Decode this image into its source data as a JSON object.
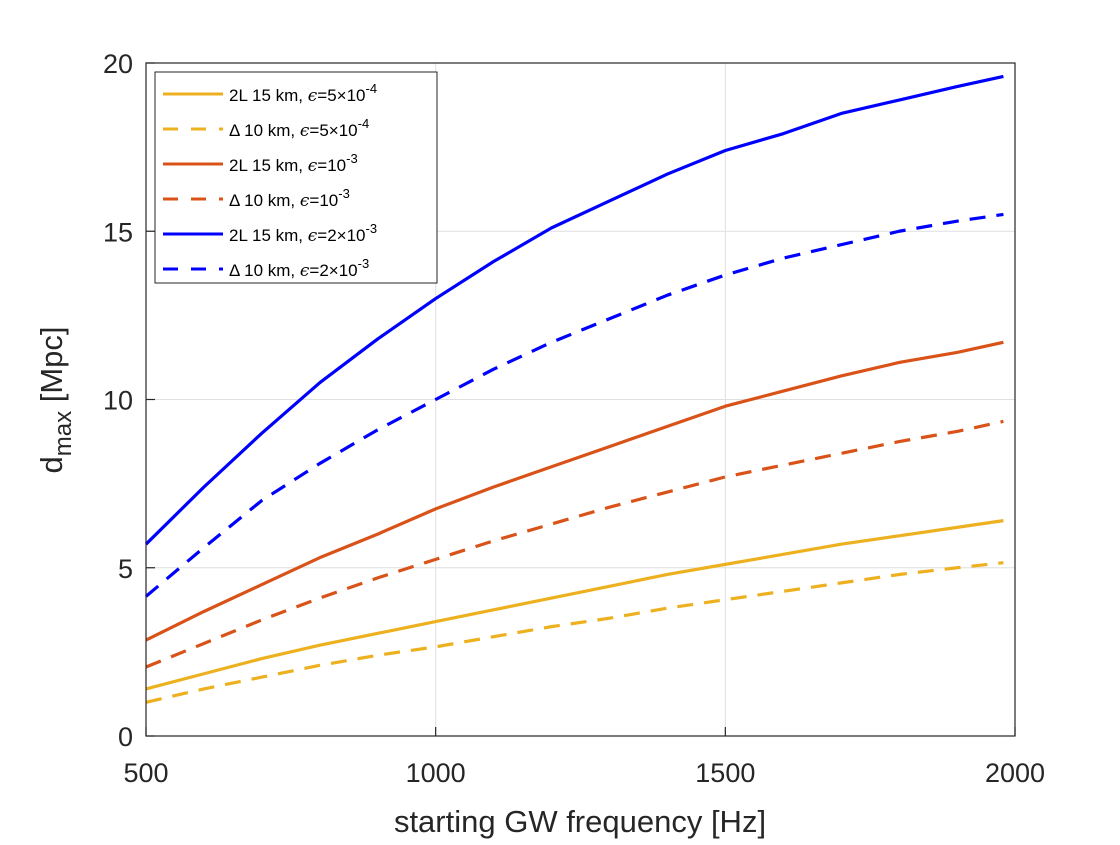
{
  "chart_data": {
    "type": "line",
    "xlabel": "starting GW frequency [Hz]",
    "ylabel": {
      "base": "d",
      "subscript": "max",
      "unit": " [Mpc]"
    },
    "xlim": [
      500,
      2000
    ],
    "ylim": [
      0,
      20
    ],
    "xticks": [
      500,
      1000,
      1500,
      2000
    ],
    "yticks": [
      0,
      5,
      10,
      15,
      20
    ],
    "grid": true,
    "legend_position": "top-left",
    "x": [
      500,
      600,
      700,
      800,
      900,
      1000,
      1100,
      1200,
      1300,
      1400,
      1500,
      1600,
      1700,
      1800,
      1900,
      1980
    ],
    "series": [
      {
        "label": {
          "prefix": "2L 15 km, ",
          "eps": "ϵ",
          "value": "=5×10",
          "exponent": "-4"
        },
        "color": "#EDB120",
        "style": "solid",
        "values": [
          1.4,
          1.85,
          2.3,
          2.7,
          3.05,
          3.4,
          3.75,
          4.1,
          4.45,
          4.8,
          5.1,
          5.4,
          5.7,
          5.95,
          6.2,
          6.4
        ]
      },
      {
        "label": {
          "prefix": "Δ 10 km, ",
          "eps": "ϵ",
          "value": "=5×10",
          "exponent": "-4"
        },
        "color": "#EDB120",
        "style": "dashed",
        "values": [
          1.0,
          1.4,
          1.75,
          2.1,
          2.4,
          2.65,
          2.95,
          3.25,
          3.5,
          3.8,
          4.05,
          4.3,
          4.55,
          4.8,
          5.0,
          5.15
        ]
      },
      {
        "label": {
          "prefix": "2L 15 km, ",
          "eps": "ϵ",
          "value": "=10",
          "exponent": "-3"
        },
        "color": "#D95319",
        "style": "solid",
        "values": [
          2.85,
          3.7,
          4.5,
          5.3,
          6.0,
          6.75,
          7.4,
          8.0,
          8.6,
          9.2,
          9.8,
          10.25,
          10.7,
          11.1,
          11.4,
          11.7
        ]
      },
      {
        "label": {
          "prefix": "Δ 10 km, ",
          "eps": "ϵ",
          "value": "=10",
          "exponent": "-3"
        },
        "color": "#D95319",
        "style": "dashed",
        "values": [
          2.05,
          2.75,
          3.45,
          4.1,
          4.7,
          5.25,
          5.8,
          6.3,
          6.8,
          7.25,
          7.7,
          8.05,
          8.4,
          8.75,
          9.05,
          9.35
        ]
      },
      {
        "label": {
          "prefix": "2L 15 km, ",
          "eps": "ϵ",
          "value": "=2×10",
          "exponent": "-3"
        },
        "color": "#0000FF",
        "style": "solid",
        "values": [
          5.7,
          7.4,
          9.0,
          10.5,
          11.8,
          13.0,
          14.1,
          15.1,
          15.9,
          16.7,
          17.4,
          17.9,
          18.5,
          18.9,
          19.3,
          19.6
        ]
      },
      {
        "label": {
          "prefix": "Δ 10 km, ",
          "eps": "ϵ",
          "value": "=2×10",
          "exponent": "-3"
        },
        "color": "#0000FF",
        "style": "dashed",
        "values": [
          4.15,
          5.6,
          7.0,
          8.1,
          9.1,
          10.0,
          10.9,
          11.7,
          12.4,
          13.1,
          13.7,
          14.2,
          14.6,
          15.0,
          15.3,
          15.5
        ]
      }
    ]
  }
}
